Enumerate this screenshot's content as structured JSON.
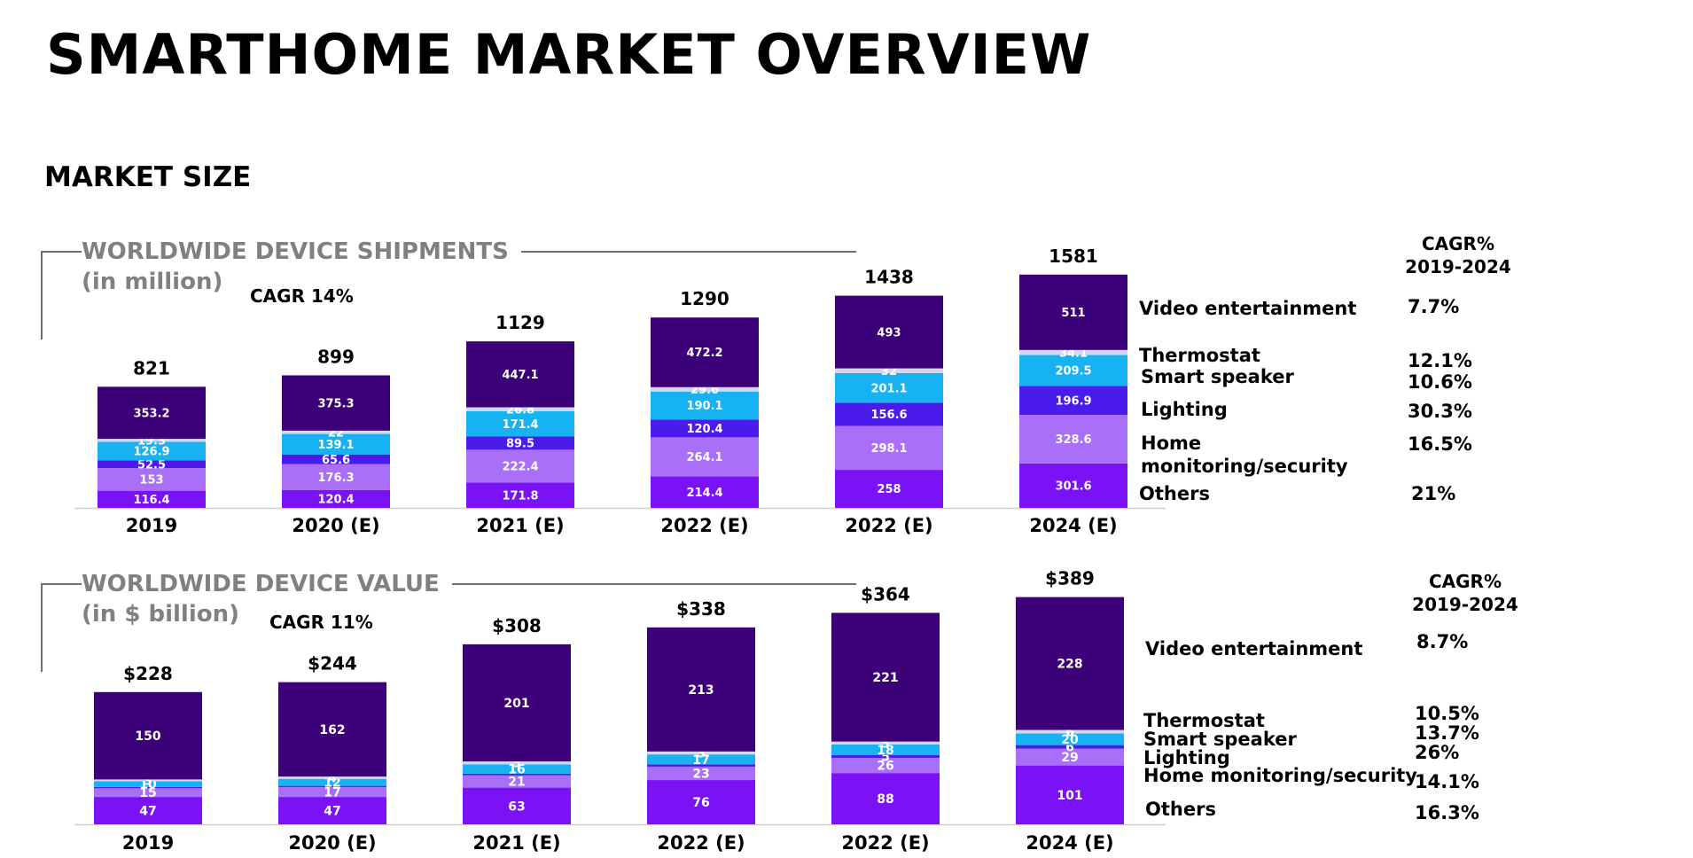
{
  "page_title": "SMARTHOME MARKET OVERVIEW",
  "section_title": "MARKET SIZE",
  "colors": {
    "Video entertainment": "#3c0078",
    "Thermostat": "#d3d8ee",
    "Smart speaker": "#16b2f2",
    "Lighting": "#4a1bea",
    "Home monitoring/security": "#a96ff6",
    "Others": "#7b12f5"
  },
  "panels": [
    {
      "title": "WORLDWIDE DEVICE SHIPMENTS",
      "subtitle": "(in million)",
      "total_cagr": "CAGR 14%",
      "cagr_header": [
        "CAGR%",
        "2019-2024"
      ],
      "legend": [
        {
          "label": "Video entertainment",
          "cagr": "7.7%"
        },
        {
          "label": "Thermostat",
          "cagr": "12.1%"
        },
        {
          "label": "Smart speaker",
          "cagr": "10.6%"
        },
        {
          "label": "Lighting",
          "cagr": "30.3%"
        },
        {
          "label": "Home\nmonitoring/security",
          "cagr": "16.5%"
        },
        {
          "label": "Others",
          "cagr": "21%"
        }
      ]
    },
    {
      "title": "WORLDWIDE DEVICE VALUE",
      "subtitle": "(in $ billion)",
      "total_cagr": "CAGR 11%",
      "cagr_header": [
        "CAGR%",
        "2019-2024"
      ],
      "legend": [
        {
          "label": "Video entertainment",
          "cagr": "8.7%"
        },
        {
          "label": "Thermostat",
          "cagr": "10.5%"
        },
        {
          "label": "Smart speaker",
          "cagr": "13.7%"
        },
        {
          "label": "Lighting",
          "cagr": "26%"
        },
        {
          "label": "Home monitoring/security",
          "cagr": "14.1%"
        },
        {
          "label": "Others",
          "cagr": "16.3%"
        }
      ]
    }
  ],
  "chart_data": [
    {
      "type": "bar",
      "stacked": true,
      "categories": [
        "2019",
        "2020 (E)",
        "2021 (E)",
        "2022 (E)",
        "2022 (E)",
        "2024 (E)"
      ],
      "totals": [
        "821",
        "899",
        "1129",
        "1290",
        "1438",
        "1581"
      ],
      "series": [
        {
          "name": "Others",
          "values": [
            116.4,
            120.4,
            171.8,
            214.4,
            258,
            301.6
          ]
        },
        {
          "name": "Home monitoring/security",
          "values": [
            153,
            176.3,
            222.4,
            264.1,
            298.1,
            328.6
          ]
        },
        {
          "name": "Lighting",
          "values": [
            52.5,
            65.6,
            89.5,
            120.4,
            156.6,
            196.9
          ]
        },
        {
          "name": "Smart speaker",
          "values": [
            126.9,
            139.1,
            171.4,
            190.1,
            201.1,
            209.5
          ]
        },
        {
          "name": "Thermostat",
          "values": [
            19.3,
            22,
            26.8,
            29.6,
            32,
            34.1
          ]
        },
        {
          "name": "Video entertainment",
          "values": [
            353.2,
            375.3,
            447.1,
            472.2,
            493,
            511
          ]
        }
      ]
    },
    {
      "type": "bar",
      "stacked": true,
      "categories": [
        "2019",
        "2020 (E)",
        "2021 (E)",
        "2022 (E)",
        "2022 (E)",
        "2024 (E)"
      ],
      "totals": [
        "$228",
        "$244",
        "$308",
        "$338",
        "$364",
        "$389"
      ],
      "series": [
        {
          "name": "Others",
          "values": [
            47,
            47,
            63,
            76,
            88,
            101
          ]
        },
        {
          "name": "Home monitoring/security",
          "values": [
            15,
            17,
            21,
            23,
            26,
            29
          ]
        },
        {
          "name": "Lighting",
          "values": [
            2,
            2,
            3,
            4,
            5,
            6
          ]
        },
        {
          "name": "Smart speaker",
          "values": [
            10,
            12,
            16,
            17,
            18,
            20
          ]
        },
        {
          "name": "Thermostat",
          "values": [
            3,
            4,
            5,
            5,
            5,
            6
          ]
        },
        {
          "name": "Video entertainment",
          "values": [
            150,
            162,
            201,
            213,
            221,
            228
          ]
        }
      ]
    }
  ]
}
